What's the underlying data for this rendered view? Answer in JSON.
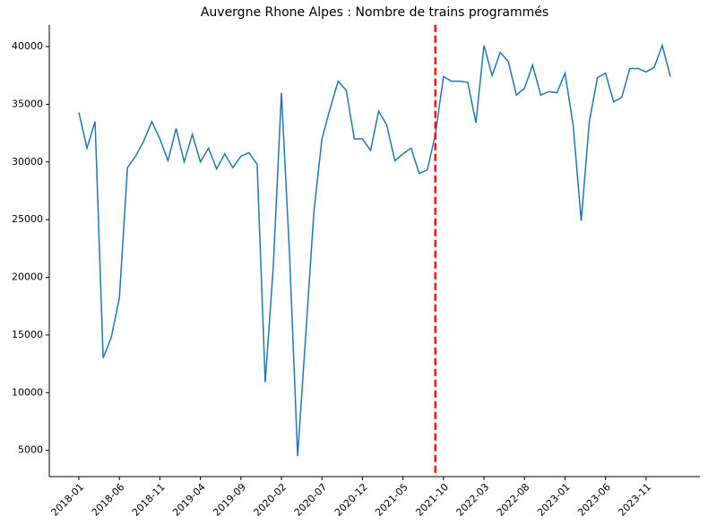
{
  "chart_data": {
    "type": "line",
    "title": "Auvergne Rhone Alpes : Nombre de trains programmés",
    "categories": [
      "2018-01",
      "2018-02",
      "2018-03",
      "2018-04",
      "2018-05",
      "2018-06",
      "2018-07",
      "2018-08",
      "2018-09",
      "2018-10",
      "2018-11",
      "2018-12",
      "2019-01",
      "2019-02",
      "2019-03",
      "2019-04",
      "2019-05",
      "2019-06",
      "2019-07",
      "2019-08",
      "2019-09",
      "2019-10",
      "2019-11",
      "2019-12",
      "2020-01",
      "2020-02",
      "2020-03",
      "2020-04",
      "2020-05",
      "2020-06",
      "2020-07",
      "2020-08",
      "2020-09",
      "2020-10",
      "2020-11",
      "2020-12",
      "2021-01",
      "2021-02",
      "2021-03",
      "2021-04",
      "2021-05",
      "2021-06",
      "2021-07",
      "2021-08",
      "2021-09",
      "2021-10",
      "2021-11",
      "2021-12",
      "2022-01",
      "2022-02",
      "2022-03",
      "2022-04",
      "2022-05",
      "2022-06",
      "2022-07",
      "2022-08",
      "2022-09",
      "2022-10",
      "2022-11",
      "2022-12",
      "2023-01",
      "2023-02",
      "2023-03",
      "2023-04",
      "2023-05",
      "2023-06",
      "2023-07",
      "2023-08",
      "2023-09",
      "2023-10",
      "2023-11",
      "2023-12",
      "2024-01",
      "2024-02"
    ],
    "series": [
      {
        "color": "#1f77b4",
        "values": [
          34300,
          31200,
          33500,
          13000,
          14800,
          18200,
          29500,
          30500,
          31800,
          33500,
          32000,
          30100,
          32900,
          30000,
          32400,
          30000,
          31200,
          29400,
          30700,
          29500,
          30500,
          30800,
          29800,
          10900,
          21000,
          36000,
          22000,
          4500,
          15000,
          25600,
          32000,
          34600,
          37000,
          36200,
          32000,
          32000,
          31000,
          34400,
          33200,
          30100,
          30700,
          31200,
          29000,
          29300,
          32400,
          37400,
          37000,
          37000,
          36900,
          33400,
          40100,
          37500,
          39500,
          38700,
          35800,
          36400,
          38400,
          35800,
          36100,
          36000,
          37700,
          33200,
          24900,
          33500,
          37300,
          37700,
          35200,
          35600,
          38100,
          38100,
          37800,
          38200,
          40100,
          37400
        ]
      }
    ],
    "xticks": [
      "2018-01",
      "2018-06",
      "2018-11",
      "2019-04",
      "2019-09",
      "2020-02",
      "2020-07",
      "2020-12",
      "2021-05",
      "2021-10",
      "2022-03",
      "2022-08",
      "2023-01",
      "2023-06",
      "2023-11"
    ],
    "ylim": [
      2720,
      41880
    ],
    "yticks": [
      5000,
      10000,
      15000,
      20000,
      25000,
      30000,
      35000,
      40000
    ],
    "vline": {
      "x": "2021-09",
      "color": "#ff0000"
    }
  }
}
